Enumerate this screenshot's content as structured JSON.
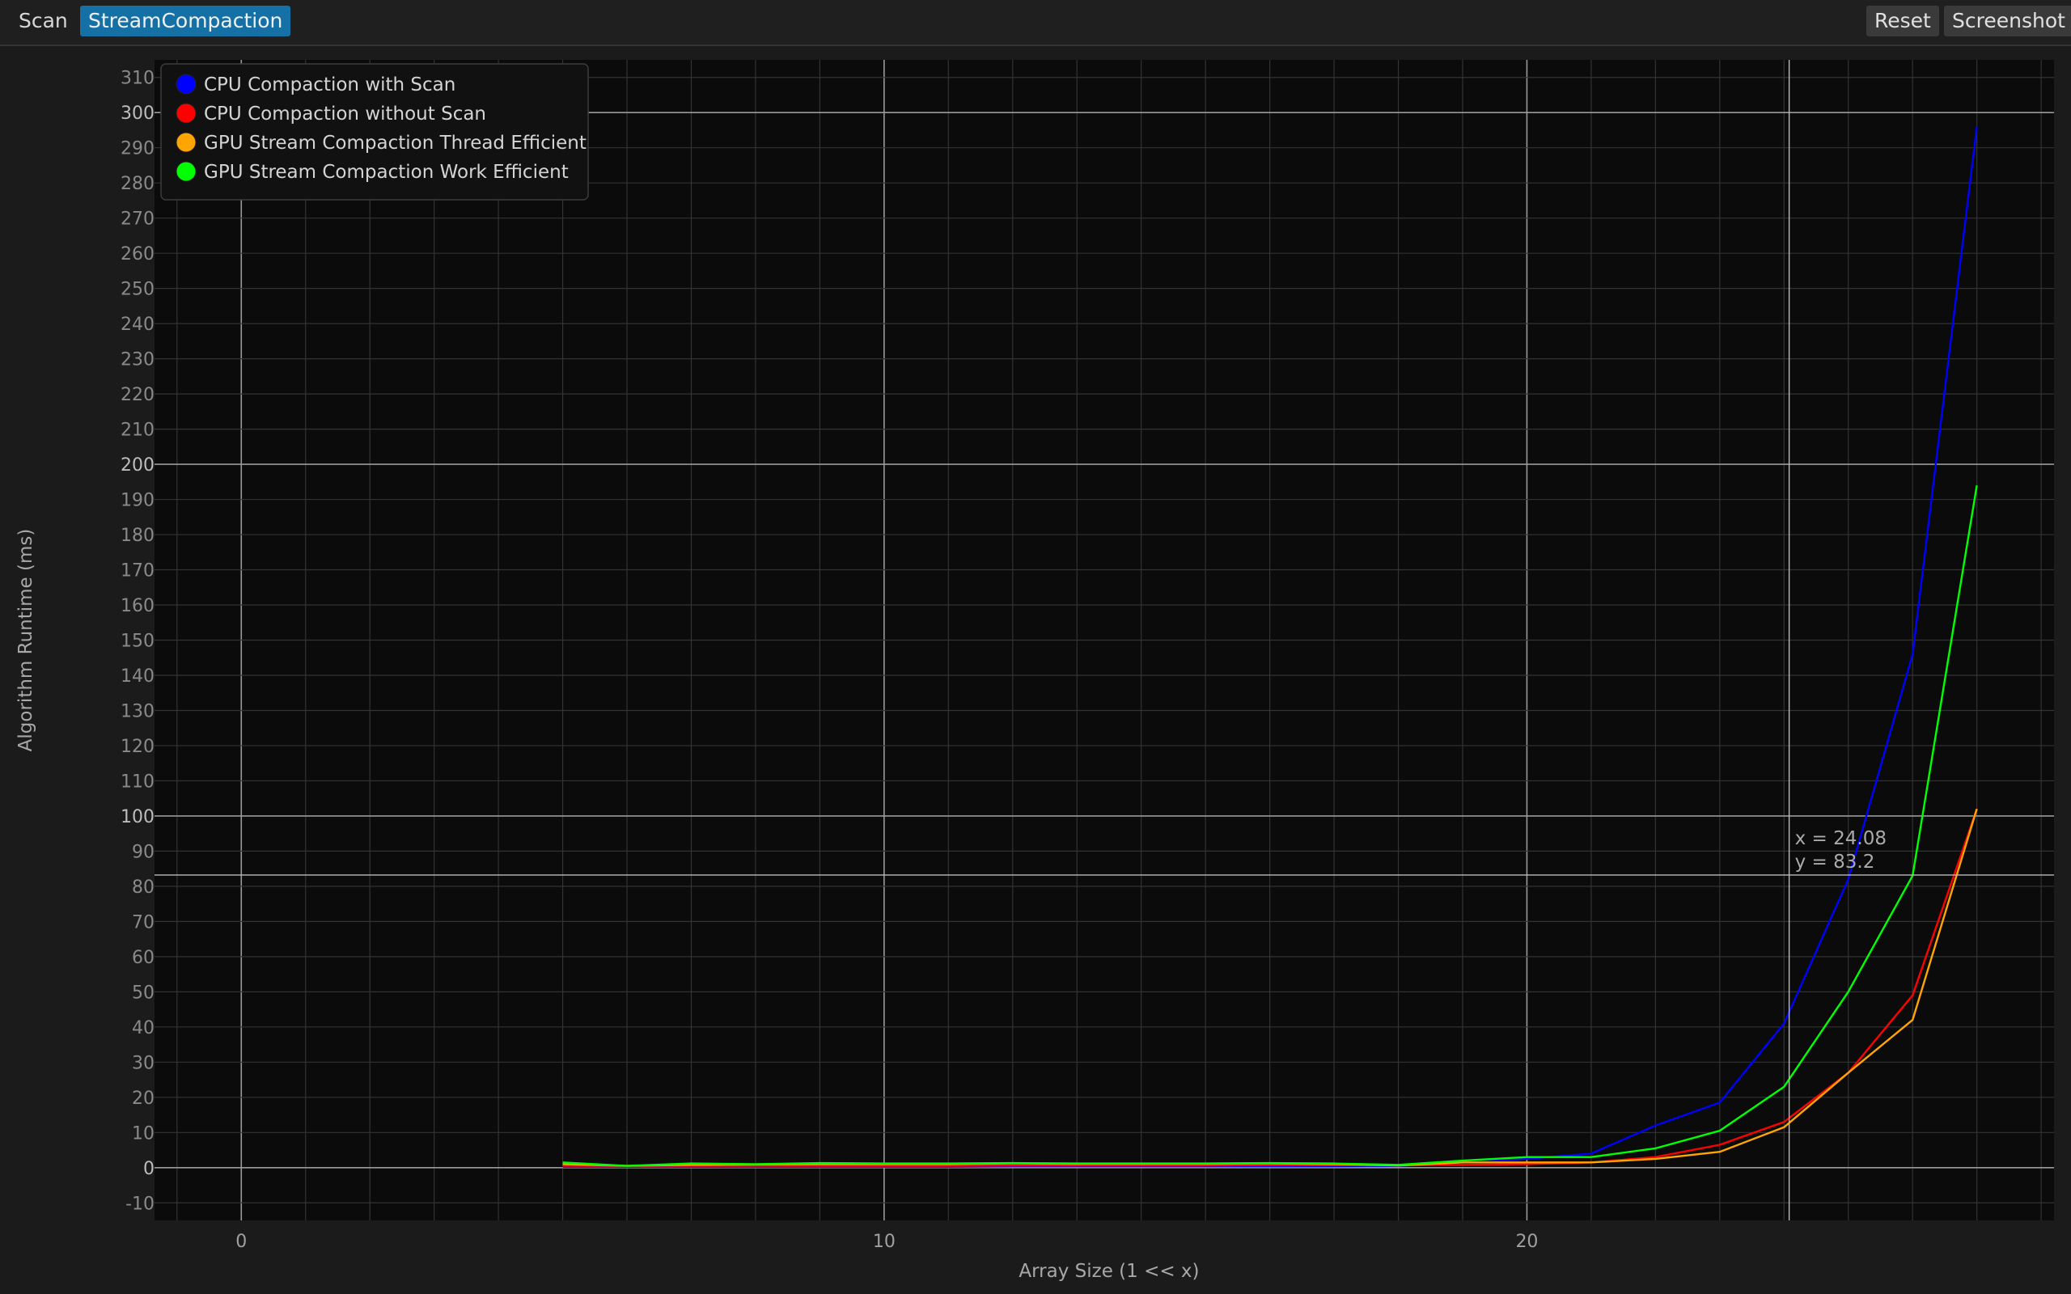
{
  "tabs": [
    {
      "label": "Scan",
      "active": false
    },
    {
      "label": "StreamCompaction",
      "active": true
    }
  ],
  "actions": {
    "reset_label": "Reset",
    "screenshot_label": "Screenshot"
  },
  "cursor": {
    "x_readout": "x = 24.08",
    "y_readout": "y = 83.2",
    "x": 24.08,
    "y": 83.2
  },
  "chart_data": {
    "type": "line",
    "title": "",
    "xlabel": "Array Size (1 << x)",
    "ylabel": "Algorithm Runtime (ms)",
    "xlim": [
      -1.35,
      28.2
    ],
    "ylim": [
      -15,
      315
    ],
    "x_major_ticks": [
      0,
      10,
      20
    ],
    "y_ticks": [
      -10,
      0,
      10,
      20,
      30,
      40,
      50,
      60,
      70,
      80,
      90,
      100,
      110,
      120,
      130,
      140,
      150,
      160,
      170,
      180,
      190,
      200,
      210,
      220,
      230,
      240,
      250,
      260,
      270,
      280,
      290,
      300,
      310
    ],
    "y_major_ticks": [
      0,
      100,
      200,
      300
    ],
    "grid": true,
    "legend_position": "top-left",
    "x": [
      5,
      6,
      7,
      8,
      9,
      10,
      11,
      12,
      13,
      14,
      15,
      16,
      17,
      18,
      19,
      20,
      21,
      22,
      23,
      24,
      25,
      26,
      27
    ],
    "series": [
      {
        "name": "CPU Compaction with Scan",
        "color": "#0000ff",
        "values": [
          0.3,
          0.3,
          0.3,
          0.3,
          0.3,
          0.3,
          0.3,
          0.4,
          0.4,
          0.4,
          0.4,
          0.4,
          0.4,
          0.5,
          1.5,
          2.5,
          4,
          12,
          18.5,
          41,
          82,
          146,
          296
        ]
      },
      {
        "name": "CPU Compaction without Scan",
        "color": "#ff0000",
        "values": [
          0.5,
          0.5,
          0.5,
          0.5,
          0.5,
          0.5,
          0.5,
          0.6,
          0.6,
          0.6,
          0.6,
          0.7,
          0.7,
          0.7,
          0.8,
          1.0,
          1.5,
          3.0,
          6.5,
          13,
          27,
          49,
          102
        ]
      },
      {
        "name": "GPU Stream Compaction Thread Efficient",
        "color": "#ffa500",
        "values": [
          1.0,
          0.5,
          0.8,
          0.9,
          1.0,
          1.0,
          1.0,
          1.2,
          1.1,
          1.1,
          1.1,
          1.2,
          1.0,
          0.6,
          1.5,
          1.5,
          1.5,
          2.5,
          4.5,
          11.5,
          27,
          42,
          102
        ]
      },
      {
        "name": "GPU Stream Compaction Work Efficient",
        "color": "#00ff00",
        "values": [
          1.5,
          0.5,
          1.2,
          1.0,
          1.3,
          1.2,
          1.2,
          1.3,
          1.2,
          1.2,
          1.2,
          1.3,
          1.2,
          0.8,
          2.0,
          3.0,
          3.0,
          5.5,
          10.5,
          23,
          50,
          83,
          194
        ]
      }
    ]
  }
}
